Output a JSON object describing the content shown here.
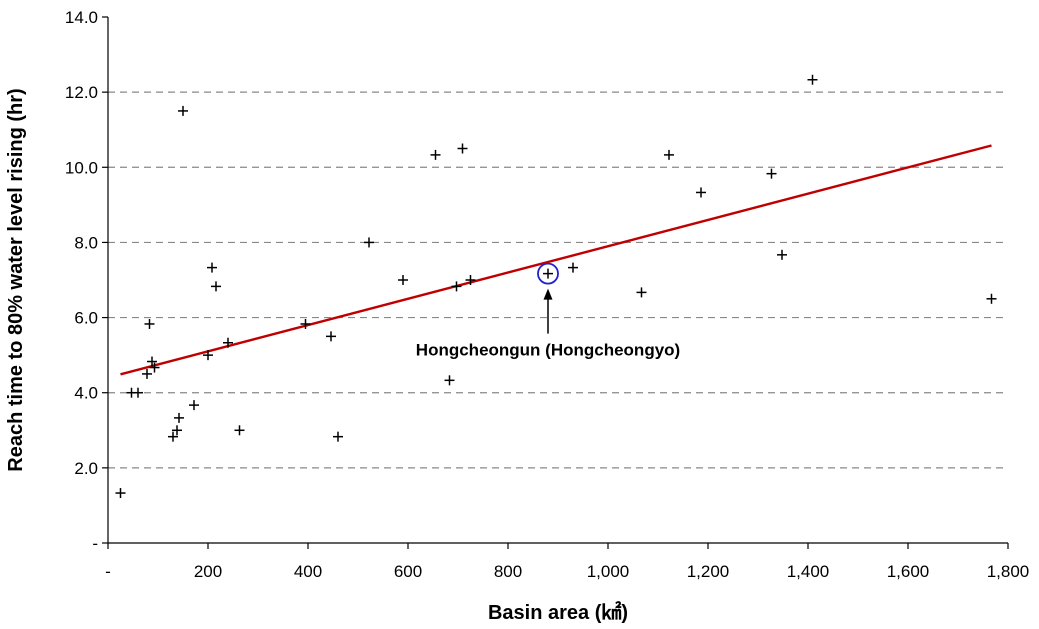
{
  "chart_data": {
    "type": "scatter",
    "title": "",
    "xlabel": "Basin area (㎢)",
    "ylabel": "Reach time to 80% water level rising (hr)",
    "xlim": [
      0,
      1800
    ],
    "ylim": [
      0,
      14
    ],
    "x_tick_labels": [
      "-",
      "200",
      "400",
      "600",
      "800",
      "1,000",
      "1,200",
      "1,400",
      "1,600",
      "1,800"
    ],
    "y_tick_labels": [
      "-",
      "2.0",
      "4.0",
      "6.0",
      "8.0",
      "10.0",
      "12.0",
      "14.0"
    ],
    "y_gridlines": [
      2,
      4,
      6,
      8,
      10,
      12
    ],
    "grid": "horizontal dashed",
    "marker": "+",
    "points": [
      {
        "x": 25,
        "y": 1.33
      },
      {
        "x": 47,
        "y": 4.0
      },
      {
        "x": 60,
        "y": 4.0
      },
      {
        "x": 78,
        "y": 4.5
      },
      {
        "x": 83,
        "y": 5.83
      },
      {
        "x": 88,
        "y": 4.83
      },
      {
        "x": 93,
        "y": 4.67
      },
      {
        "x": 130,
        "y": 2.83
      },
      {
        "x": 138,
        "y": 3.0
      },
      {
        "x": 142,
        "y": 3.33
      },
      {
        "x": 150,
        "y": 11.5
      },
      {
        "x": 172,
        "y": 3.67
      },
      {
        "x": 200,
        "y": 5.0
      },
      {
        "x": 208,
        "y": 7.33
      },
      {
        "x": 216,
        "y": 6.83
      },
      {
        "x": 240,
        "y": 5.33
      },
      {
        "x": 263,
        "y": 3.0
      },
      {
        "x": 395,
        "y": 5.83
      },
      {
        "x": 446,
        "y": 5.5
      },
      {
        "x": 460,
        "y": 2.83
      },
      {
        "x": 522,
        "y": 8.0
      },
      {
        "x": 590,
        "y": 7.0
      },
      {
        "x": 655,
        "y": 10.33
      },
      {
        "x": 683,
        "y": 4.33
      },
      {
        "x": 697,
        "y": 6.83
      },
      {
        "x": 709,
        "y": 10.5
      },
      {
        "x": 725,
        "y": 7.0
      },
      {
        "x": 880,
        "y": 7.17
      },
      {
        "x": 930,
        "y": 7.33
      },
      {
        "x": 1067,
        "y": 6.67
      },
      {
        "x": 1122,
        "y": 10.33
      },
      {
        "x": 1186,
        "y": 9.33
      },
      {
        "x": 1327,
        "y": 9.83
      },
      {
        "x": 1348,
        "y": 7.67
      },
      {
        "x": 1409,
        "y": 12.33
      },
      {
        "x": 1767,
        "y": 6.5
      }
    ],
    "trendline": {
      "x1": 25,
      "y1": 4.49,
      "x2": 1767,
      "y2": 10.58,
      "color": "#c00000"
    },
    "highlight": {
      "x": 880,
      "y": 7.17,
      "color": "#2222cc"
    },
    "annotation": {
      "text": "Hongcheongun (Hongcheongyo)",
      "x": 880,
      "y": 7.17
    }
  }
}
